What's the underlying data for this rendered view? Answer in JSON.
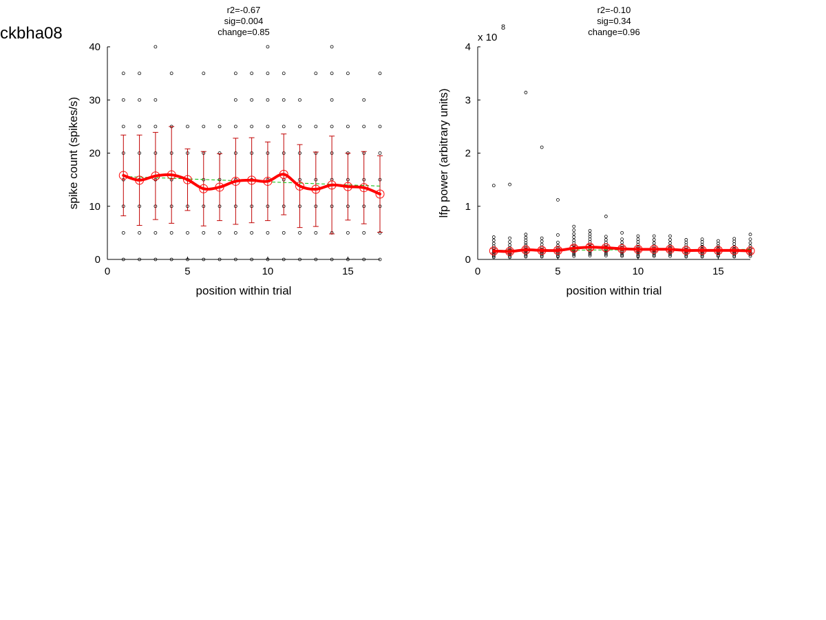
{
  "figure_title": "ckbha08",
  "colors": {
    "raw": "#000000",
    "mean": "#ff0000",
    "circle": "#ff0000",
    "error": "#c00000",
    "fit": "#00bb00"
  },
  "chart_data": [
    {
      "type": "scatter",
      "title_lines": [
        "r2=-0.67",
        "sig=0.004",
        "change=0.85"
      ],
      "xlabel": "position within trial",
      "ylabel": "spike count (spikes/s)",
      "xlim": [
        0,
        17
      ],
      "ylim": [
        0,
        40
      ],
      "xticks": [
        0,
        5,
        10,
        15
      ],
      "yticks": [
        0,
        10,
        20,
        30,
        40
      ],
      "y_exponent": null,
      "grid": false,
      "legend": "none",
      "x": [
        1,
        2,
        3,
        4,
        5,
        6,
        7,
        8,
        9,
        10,
        11,
        12,
        13,
        14,
        15,
        16,
        17
      ],
      "raw_values": [
        [
          0,
          5,
          10,
          15,
          20,
          25,
          30,
          35
        ],
        [
          0,
          5,
          10,
          15,
          20,
          25,
          30,
          35
        ],
        [
          0,
          5,
          10,
          15,
          20,
          25,
          30,
          40
        ],
        [
          0,
          5,
          10,
          15,
          20,
          25,
          35
        ],
        [
          0,
          5,
          10,
          15,
          20,
          25
        ],
        [
          0,
          5,
          10,
          15,
          20,
          25,
          35
        ],
        [
          0,
          5,
          10,
          15,
          20,
          25
        ],
        [
          0,
          5,
          10,
          15,
          20,
          25,
          30,
          35
        ],
        [
          0,
          5,
          10,
          15,
          20,
          25,
          30,
          35
        ],
        [
          0,
          5,
          10,
          15,
          20,
          25,
          30,
          35,
          40
        ],
        [
          0,
          5,
          10,
          15,
          20,
          25,
          30,
          35
        ],
        [
          0,
          5,
          10,
          15,
          20,
          25,
          30
        ],
        [
          0,
          5,
          10,
          15,
          20,
          25,
          35
        ],
        [
          0,
          5,
          10,
          15,
          20,
          25,
          30,
          35,
          40
        ],
        [
          0,
          5,
          10,
          15,
          20,
          25,
          35
        ],
        [
          0,
          5,
          10,
          15,
          20,
          25,
          30
        ],
        [
          0,
          5,
          10,
          15,
          20,
          25,
          35
        ]
      ],
      "mean": [
        15.8,
        14.9,
        15.7,
        15.9,
        15.0,
        13.3,
        13.6,
        14.7,
        14.9,
        14.7,
        16.0,
        13.8,
        13.2,
        14.0,
        13.7,
        13.5,
        12.3
      ],
      "error": [
        7.6,
        8.5,
        8.2,
        9.1,
        5.8,
        7.0,
        6.3,
        8.1,
        8.0,
        7.4,
        7.6,
        7.8,
        7.0,
        9.2,
        6.3,
        6.8,
        7.2
      ],
      "trend": [
        15.6,
        13.8
      ]
    },
    {
      "type": "scatter",
      "title_lines": [
        "r2=-0.10",
        "sig=0.34",
        "change=0.96"
      ],
      "xlabel": "position within trial",
      "ylabel": "lfp power (arbitrary units)",
      "xlim": [
        0,
        17
      ],
      "ylim": [
        0,
        4
      ],
      "xticks": [
        0,
        5,
        10,
        15
      ],
      "yticks": [
        0,
        1,
        2,
        3,
        4
      ],
      "y_exponent": {
        "base": "x 10",
        "power": "8"
      },
      "grid": false,
      "legend": "none",
      "x": [
        1,
        2,
        3,
        4,
        5,
        6,
        7,
        8,
        9,
        10,
        11,
        12,
        13,
        14,
        15,
        16,
        17
      ],
      "raw_values": [
        [
          1.39,
          0.42,
          0.36,
          0.3,
          0.25,
          0.21,
          0.17,
          0.14,
          0.11,
          0.08,
          0.06,
          0.04
        ],
        [
          1.41,
          0.4,
          0.33,
          0.27,
          0.22,
          0.18,
          0.15,
          0.12,
          0.09,
          0.06,
          0.04
        ],
        [
          3.14,
          0.47,
          0.41,
          0.36,
          0.31,
          0.27,
          0.23,
          0.19,
          0.16,
          0.13,
          0.1,
          0.07,
          0.05
        ],
        [
          2.11,
          0.4,
          0.34,
          0.28,
          0.23,
          0.19,
          0.16,
          0.13,
          0.1,
          0.07,
          0.05
        ],
        [
          1.12,
          0.46,
          0.32,
          0.26,
          0.21,
          0.17,
          0.13,
          0.1,
          0.07,
          0.05
        ],
        [
          0.62,
          0.55,
          0.48,
          0.42,
          0.36,
          0.31,
          0.26,
          0.22,
          0.18,
          0.15,
          0.12,
          0.09,
          0.06
        ],
        [
          0.54,
          0.48,
          0.43,
          0.38,
          0.33,
          0.28,
          0.24,
          0.2,
          0.16,
          0.13,
          0.1,
          0.07
        ],
        [
          0.81,
          0.43,
          0.37,
          0.32,
          0.27,
          0.23,
          0.19,
          0.16,
          0.13,
          0.1,
          0.07
        ],
        [
          0.5,
          0.38,
          0.32,
          0.27,
          0.22,
          0.18,
          0.14,
          0.11,
          0.08,
          0.06
        ],
        [
          0.44,
          0.38,
          0.33,
          0.28,
          0.23,
          0.19,
          0.16,
          0.13,
          0.1,
          0.07,
          0.05
        ],
        [
          0.44,
          0.37,
          0.31,
          0.26,
          0.21,
          0.17,
          0.14,
          0.11,
          0.08,
          0.06
        ],
        [
          0.44,
          0.37,
          0.31,
          0.26,
          0.22,
          0.18,
          0.15,
          0.12,
          0.09,
          0.06
        ],
        [
          0.37,
          0.32,
          0.27,
          0.23,
          0.19,
          0.16,
          0.13,
          0.1,
          0.07,
          0.05
        ],
        [
          0.38,
          0.33,
          0.28,
          0.24,
          0.2,
          0.16,
          0.13,
          0.1,
          0.07,
          0.05
        ],
        [
          0.35,
          0.3,
          0.25,
          0.21,
          0.17,
          0.14,
          0.11,
          0.08,
          0.06
        ],
        [
          0.39,
          0.34,
          0.29,
          0.24,
          0.2,
          0.16,
          0.13,
          0.1,
          0.07,
          0.05
        ],
        [
          0.47,
          0.38,
          0.31,
          0.25,
          0.2,
          0.16,
          0.12,
          0.09,
          0.06
        ]
      ],
      "mean": [
        0.16,
        0.15,
        0.18,
        0.17,
        0.17,
        0.21,
        0.23,
        0.22,
        0.2,
        0.19,
        0.19,
        0.19,
        0.17,
        0.17,
        0.17,
        0.17,
        0.16
      ],
      "error": [
        0.04,
        0.04,
        0.04,
        0.04,
        0.04,
        0.05,
        0.05,
        0.04,
        0.04,
        0.04,
        0.04,
        0.04,
        0.04,
        0.04,
        0.04,
        0.04,
        0.04
      ],
      "trend": [
        0.17,
        0.19
      ]
    }
  ]
}
